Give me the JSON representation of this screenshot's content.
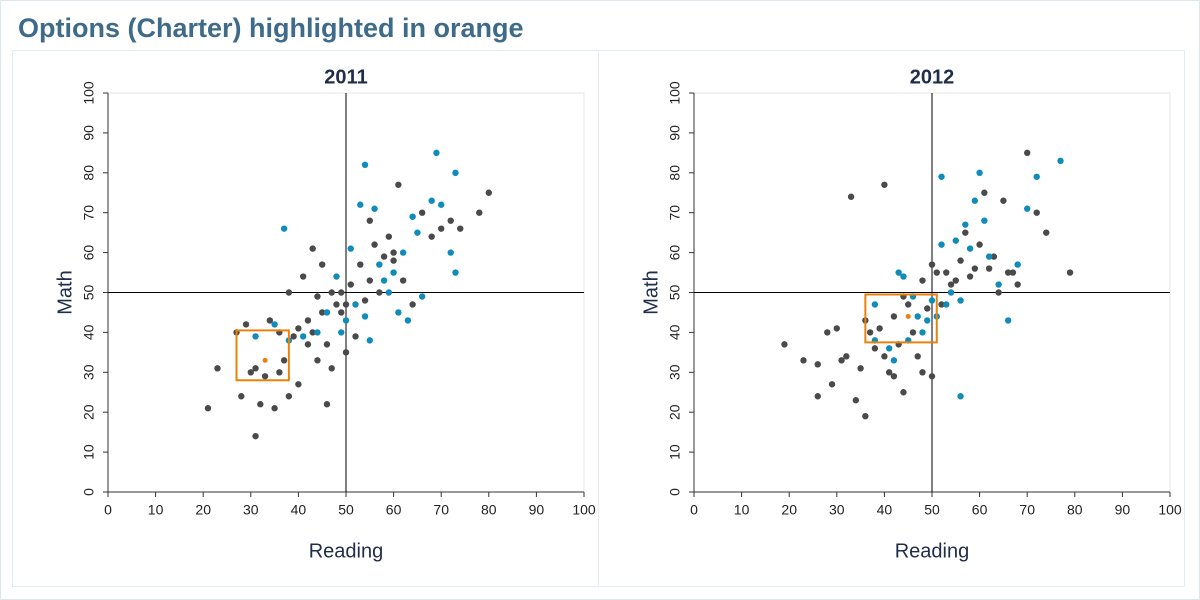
{
  "title": "Options (Charter) highlighted in orange",
  "chart_data": [
    {
      "type": "scatter",
      "title": "2011",
      "x_label": "Reading",
      "y_label": "Math",
      "xlim": [
        0,
        100
      ],
      "ylim": [
        0,
        100
      ],
      "xticks": [
        0,
        10,
        20,
        30,
        40,
        50,
        60,
        70,
        80,
        90,
        100
      ],
      "yticks": [
        0,
        10,
        20,
        30,
        40,
        50,
        60,
        70,
        80,
        90,
        100
      ],
      "hline": 50,
      "vline": 50,
      "series": [
        {
          "color": "#4a4a4a",
          "x": [
            21,
            23,
            27,
            28,
            29,
            30,
            31,
            32,
            33,
            34,
            35,
            36,
            37,
            38,
            38,
            39,
            40,
            41,
            42,
            43,
            44,
            45,
            46,
            47,
            48,
            49,
            50,
            51,
            52,
            53,
            54,
            55,
            56,
            57,
            58,
            59,
            60,
            61,
            62,
            64,
            66,
            68,
            70,
            72,
            74,
            78,
            80,
            31,
            36,
            42,
            44,
            47,
            50,
            46,
            40,
            49,
            43,
            55,
            60,
            45
          ],
          "values": [
            21,
            31,
            40,
            24,
            42,
            30,
            31,
            22,
            29,
            43,
            21,
            40,
            33,
            24,
            50,
            39,
            41,
            54,
            43,
            61,
            49,
            45,
            37,
            50,
            47,
            45,
            47,
            52,
            39,
            57,
            48,
            53,
            62,
            50,
            59,
            64,
            58,
            77,
            53,
            47,
            70,
            64,
            66,
            68,
            66,
            70,
            75,
            14,
            30,
            37,
            33,
            31,
            35,
            22,
            27,
            50,
            40,
            68,
            60,
            57
          ]
        },
        {
          "color": "#0f8cba",
          "x": [
            31,
            35,
            37,
            38,
            41,
            44,
            46,
            48,
            49,
            50,
            51,
            52,
            53,
            54,
            55,
            56,
            57,
            58,
            59,
            60,
            61,
            62,
            63,
            64,
            66,
            68,
            69,
            70,
            72,
            73,
            73,
            65,
            54
          ],
          "values": [
            39,
            42,
            66,
            38,
            39,
            40,
            45,
            54,
            40,
            43,
            61,
            47,
            72,
            44,
            38,
            71,
            57,
            53,
            50,
            55,
            45,
            60,
            43,
            69,
            49,
            73,
            85,
            72,
            60,
            55,
            80,
            65,
            82
          ]
        },
        {
          "color": "#e8820c",
          "x": [
            33
          ],
          "values": [
            33
          ],
          "interval": {
            "x": [
              27,
              38
            ],
            "y": [
              28,
              40.5
            ]
          }
        }
      ]
    },
    {
      "type": "scatter",
      "title": "2012",
      "x_label": "Reading",
      "y_label": "Math",
      "xlim": [
        0,
        100
      ],
      "ylim": [
        0,
        100
      ],
      "xticks": [
        0,
        10,
        20,
        30,
        40,
        50,
        60,
        70,
        80,
        90,
        100
      ],
      "yticks": [
        0,
        10,
        20,
        30,
        40,
        50,
        60,
        70,
        80,
        90,
        100
      ],
      "hline": 50,
      "vline": 50,
      "series": [
        {
          "color": "#4a4a4a",
          "x": [
            19,
            23,
            26,
            28,
            29,
            30,
            31,
            32,
            33,
            34,
            35,
            36,
            37,
            38,
            39,
            40,
            41,
            42,
            43,
            44,
            45,
            46,
            47,
            48,
            49,
            50,
            51,
            52,
            53,
            54,
            55,
            56,
            57,
            58,
            59,
            60,
            61,
            62,
            63,
            64,
            65,
            66,
            67,
            68,
            70,
            72,
            74,
            79,
            40,
            42,
            50,
            48,
            44,
            36,
            26
          ],
          "values": [
            37,
            33,
            24,
            40,
            27,
            41,
            33,
            34,
            74,
            23,
            31,
            43,
            40,
            36,
            41,
            34,
            30,
            44,
            37,
            49,
            47,
            40,
            34,
            53,
            46,
            57,
            55,
            47,
            55,
            52,
            53,
            58,
            65,
            54,
            56,
            62,
            75,
            56,
            59,
            50,
            73,
            55,
            55,
            52,
            85,
            70,
            65,
            55,
            77,
            29,
            29,
            30,
            25,
            19,
            32
          ]
        },
        {
          "color": "#0f8cba",
          "x": [
            38,
            41,
            42,
            43,
            44,
            45,
            46,
            47,
            48,
            49,
            50,
            51,
            52,
            53,
            54,
            55,
            56,
            57,
            58,
            59,
            60,
            61,
            62,
            64,
            66,
            68,
            70,
            72,
            77,
            52,
            56,
            38
          ],
          "values": [
            38,
            36,
            33,
            55,
            54,
            38,
            49,
            44,
            40,
            43,
            48,
            44,
            62,
            47,
            50,
            63,
            48,
            67,
            61,
            73,
            80,
            68,
            59,
            52,
            43,
            57,
            71,
            79,
            83,
            79,
            24,
            47
          ]
        },
        {
          "color": "#e8820c",
          "x": [
            45
          ],
          "values": [
            44
          ],
          "interval": {
            "x": [
              36,
              51
            ],
            "y": [
              37.5,
              49.5
            ]
          }
        }
      ]
    }
  ]
}
